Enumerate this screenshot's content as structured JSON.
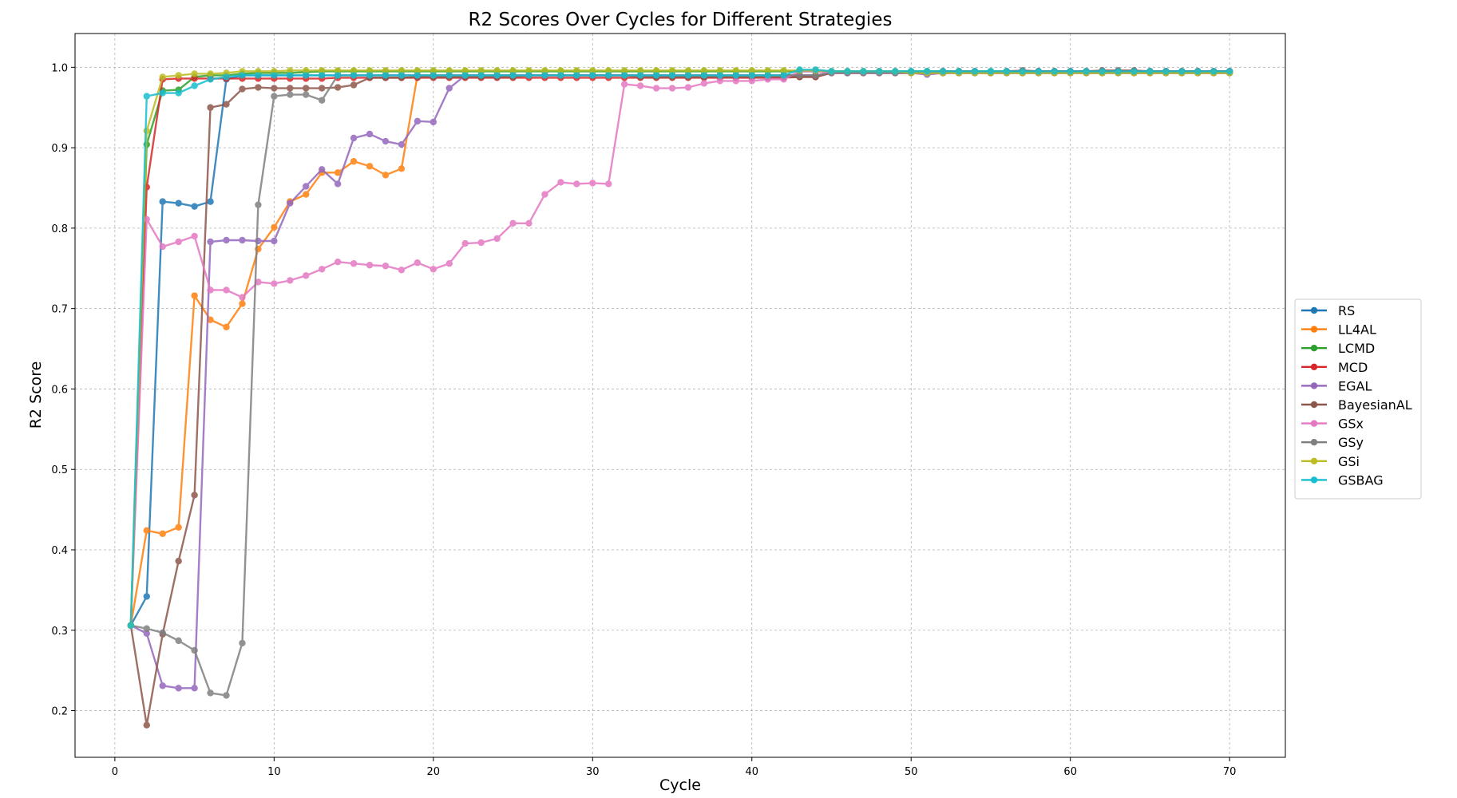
{
  "chart_data": {
    "type": "line",
    "title": "R2 Scores Over Cycles for Different Strategies",
    "xlabel": "Cycle",
    "ylabel": "R2 Score",
    "xlim": [
      -2.5,
      73.5
    ],
    "ylim": [
      0.142,
      1.042
    ],
    "xticks": [
      0,
      10,
      20,
      30,
      40,
      50,
      60,
      70
    ],
    "yticks": [
      0.2,
      0.3,
      0.4,
      0.5,
      0.6,
      0.7,
      0.8,
      0.9,
      1.0
    ],
    "grid": true,
    "legend_position": "center-right, outside plot",
    "x_start": 1,
    "series": [
      {
        "name": "RS",
        "color": "#1f77b4",
        "values": [
          0.306,
          0.342,
          0.833,
          0.831,
          0.827,
          0.833,
          0.985,
          0.99,
          0.99,
          0.99,
          0.99,
          0.99,
          0.99,
          0.99,
          0.99,
          0.99,
          0.99,
          0.99,
          0.99,
          0.99,
          0.99,
          0.99,
          0.99,
          0.99,
          0.99,
          0.99,
          0.99,
          0.99,
          0.99,
          0.99,
          0.99,
          0.99,
          0.99,
          0.99,
          0.99,
          0.99,
          0.99,
          0.99,
          0.99,
          0.99,
          0.99,
          0.99,
          0.99,
          0.99,
          0.993,
          0.993,
          0.993,
          0.993,
          0.993,
          0.993,
          0.993,
          0.993,
          0.993,
          0.993,
          0.993,
          0.993,
          0.993,
          0.993,
          0.993,
          0.993,
          0.993,
          0.993,
          0.993,
          0.993,
          0.993,
          0.993,
          0.993,
          0.993,
          0.993,
          0.993
        ]
      },
      {
        "name": "LL4AL",
        "color": "#ff7f0e",
        "values": [
          0.306,
          0.424,
          0.42,
          0.428,
          0.716,
          0.686,
          0.677,
          0.706,
          0.774,
          0.801,
          0.833,
          0.842,
          0.869,
          0.869,
          0.883,
          0.877,
          0.866,
          0.874,
          0.99,
          0.99,
          0.99,
          0.99,
          0.99,
          0.99,
          0.99,
          0.99,
          0.99,
          0.99,
          0.99,
          0.99,
          0.99,
          0.99,
          0.99,
          0.99,
          0.99,
          0.99,
          0.99,
          0.99,
          0.99,
          0.99,
          0.99,
          0.99,
          0.99,
          0.99,
          0.993,
          0.993,
          0.993,
          0.993,
          0.993,
          0.993,
          0.993,
          0.993,
          0.993,
          0.993,
          0.993,
          0.993,
          0.993,
          0.993,
          0.993,
          0.993,
          0.993,
          0.993,
          0.993,
          0.993,
          0.993,
          0.993,
          0.993,
          0.993,
          0.993,
          0.993
        ]
      },
      {
        "name": "LCMD",
        "color": "#2ca02c",
        "values": [
          0.306,
          0.904,
          0.971,
          0.972,
          0.988,
          0.99,
          0.99,
          0.992,
          0.993,
          0.993,
          0.993,
          0.994,
          0.995,
          0.995,
          0.995,
          0.995,
          0.995,
          0.995,
          0.995,
          0.995,
          0.995,
          0.995,
          0.995,
          0.995,
          0.995,
          0.995,
          0.995,
          0.995,
          0.995,
          0.995,
          0.995,
          0.995,
          0.995,
          0.995,
          0.995,
          0.995,
          0.995,
          0.995,
          0.995,
          0.995,
          0.995,
          0.995,
          0.995,
          0.995,
          0.995,
          0.995,
          0.995,
          0.995,
          0.995,
          0.995,
          0.995,
          0.995,
          0.995,
          0.995,
          0.995,
          0.995,
          0.995,
          0.995,
          0.995,
          0.995,
          0.995,
          0.995,
          0.995,
          0.995,
          0.995,
          0.995,
          0.995,
          0.995,
          0.995,
          0.995
        ]
      },
      {
        "name": "MCD",
        "color": "#d62728",
        "values": [
          0.306,
          0.851,
          0.985,
          0.986,
          0.986,
          0.986,
          0.986,
          0.986,
          0.986,
          0.986,
          0.986,
          0.986,
          0.986,
          0.987,
          0.987,
          0.987,
          0.987,
          0.987,
          0.987,
          0.987,
          0.987,
          0.987,
          0.987,
          0.987,
          0.987,
          0.987,
          0.987,
          0.987,
          0.987,
          0.987,
          0.987,
          0.987,
          0.987,
          0.987,
          0.987,
          0.987,
          0.987,
          0.987,
          0.987,
          0.987,
          0.987,
          0.987,
          0.988,
          0.988,
          0.993,
          0.993,
          0.993,
          0.993,
          0.993,
          0.993,
          0.993,
          0.993,
          0.993,
          0.993,
          0.993,
          0.993,
          0.995,
          0.995,
          0.995,
          0.995,
          0.995,
          0.995,
          0.995,
          0.995,
          0.995,
          0.995,
          0.995,
          0.995,
          0.995,
          0.995
        ]
      },
      {
        "name": "EGAL",
        "color": "#9467bd",
        "values": [
          0.306,
          0.296,
          0.231,
          0.228,
          0.228,
          0.783,
          0.785,
          0.785,
          0.784,
          0.784,
          0.831,
          0.852,
          0.873,
          0.855,
          0.912,
          0.917,
          0.908,
          0.904,
          0.933,
          0.932,
          0.974,
          0.99,
          0.99,
          0.99,
          0.99,
          0.99,
          0.99,
          0.99,
          0.99,
          0.99,
          0.99,
          0.99,
          0.99,
          0.99,
          0.99,
          0.99,
          0.99,
          0.99,
          0.99,
          0.99,
          0.99,
          0.99,
          0.99,
          0.99,
          0.993,
          0.993,
          0.993,
          0.993,
          0.993,
          0.993,
          0.991,
          0.993,
          0.993,
          0.993,
          0.993,
          0.993,
          0.993,
          0.993,
          0.993,
          0.993,
          0.993,
          0.993,
          0.993,
          0.993,
          0.993,
          0.993,
          0.993,
          0.993,
          0.993,
          0.993
        ]
      },
      {
        "name": "BayesianAL",
        "color": "#8c564b",
        "values": [
          0.306,
          0.182,
          0.295,
          0.386,
          0.468,
          0.95,
          0.954,
          0.973,
          0.975,
          0.974,
          0.974,
          0.974,
          0.974,
          0.975,
          0.978,
          0.987,
          0.987,
          0.987,
          0.988,
          0.988,
          0.988,
          0.988,
          0.988,
          0.988,
          0.988,
          0.99,
          0.99,
          0.99,
          0.99,
          0.99,
          0.99,
          0.99,
          0.988,
          0.988,
          0.988,
          0.988,
          0.988,
          0.988,
          0.988,
          0.988,
          0.988,
          0.988,
          0.988,
          0.988,
          0.993,
          0.993,
          0.993,
          0.995,
          0.993,
          0.993,
          0.993,
          0.995,
          0.995,
          0.995,
          0.993,
          0.995,
          0.996,
          0.995,
          0.995,
          0.995,
          0.995,
          0.996,
          0.996,
          0.996,
          0.995,
          0.995,
          0.995,
          0.995,
          0.995,
          0.995
        ]
      },
      {
        "name": "GSx",
        "color": "#e377c2",
        "values": [
          0.306,
          0.811,
          0.777,
          0.783,
          0.79,
          0.723,
          0.723,
          0.714,
          0.733,
          0.731,
          0.735,
          0.741,
          0.749,
          0.758,
          0.756,
          0.754,
          0.753,
          0.748,
          0.757,
          0.749,
          0.756,
          0.781,
          0.782,
          0.787,
          0.806,
          0.806,
          0.842,
          0.857,
          0.855,
          0.856,
          0.855,
          0.979,
          0.977,
          0.974,
          0.974,
          0.975,
          0.98,
          0.983,
          0.983,
          0.983,
          0.985,
          0.985,
          0.995,
          0.995,
          0.993,
          0.993,
          0.993,
          0.993,
          0.993,
          0.993,
          0.993,
          0.993,
          0.993,
          0.993,
          0.993,
          0.993,
          0.993,
          0.993,
          0.993,
          0.993,
          0.993,
          0.993,
          0.993,
          0.993,
          0.993,
          0.993,
          0.993,
          0.993,
          0.993,
          0.993
        ]
      },
      {
        "name": "GSy",
        "color": "#7f7f7f",
        "values": [
          0.306,
          0.302,
          0.297,
          0.287,
          0.275,
          0.222,
          0.219,
          0.284,
          0.829,
          0.964,
          0.966,
          0.966,
          0.959,
          0.99,
          0.99,
          0.99,
          0.99,
          0.99,
          0.99,
          0.99,
          0.99,
          0.99,
          0.99,
          0.99,
          0.99,
          0.99,
          0.99,
          0.99,
          0.99,
          0.99,
          0.99,
          0.99,
          0.99,
          0.99,
          0.99,
          0.99,
          0.99,
          0.99,
          0.99,
          0.99,
          0.99,
          0.99,
          0.99,
          0.99,
          0.993,
          0.993,
          0.993,
          0.993,
          0.993,
          0.993,
          0.993,
          0.993,
          0.993,
          0.993,
          0.993,
          0.993,
          0.993,
          0.993,
          0.993,
          0.993,
          0.993,
          0.993,
          0.993,
          0.993,
          0.993,
          0.993,
          0.993,
          0.993,
          0.993,
          0.993
        ]
      },
      {
        "name": "GSi",
        "color": "#bcbd22",
        "values": [
          0.306,
          0.921,
          0.988,
          0.99,
          0.992,
          0.992,
          0.993,
          0.995,
          0.995,
          0.995,
          0.996,
          0.996,
          0.996,
          0.996,
          0.996,
          0.996,
          0.996,
          0.996,
          0.996,
          0.996,
          0.996,
          0.996,
          0.996,
          0.996,
          0.996,
          0.996,
          0.996,
          0.996,
          0.996,
          0.996,
          0.996,
          0.996,
          0.996,
          0.996,
          0.996,
          0.996,
          0.996,
          0.996,
          0.996,
          0.996,
          0.996,
          0.996,
          0.996,
          0.996,
          0.995,
          0.995,
          0.995,
          0.995,
          0.995,
          0.993,
          0.993,
          0.993,
          0.993,
          0.993,
          0.993,
          0.993,
          0.993,
          0.993,
          0.993,
          0.993,
          0.993,
          0.993,
          0.993,
          0.993,
          0.993,
          0.993,
          0.993,
          0.993,
          0.993,
          0.993
        ]
      },
      {
        "name": "GSBAG",
        "color": "#17becf",
        "values": [
          0.306,
          0.964,
          0.968,
          0.968,
          0.977,
          0.985,
          0.988,
          0.99,
          0.99,
          0.99,
          0.99,
          0.99,
          0.99,
          0.99,
          0.99,
          0.99,
          0.99,
          0.99,
          0.99,
          0.99,
          0.99,
          0.99,
          0.99,
          0.99,
          0.99,
          0.99,
          0.99,
          0.99,
          0.99,
          0.99,
          0.99,
          0.99,
          0.99,
          0.99,
          0.99,
          0.99,
          0.99,
          0.99,
          0.99,
          0.99,
          0.99,
          0.99,
          0.997,
          0.997,
          0.995,
          0.995,
          0.995,
          0.995,
          0.995,
          0.995,
          0.995,
          0.995,
          0.995,
          0.995,
          0.995,
          0.995,
          0.995,
          0.995,
          0.995,
          0.995,
          0.995,
          0.995,
          0.995,
          0.995,
          0.995,
          0.995,
          0.995,
          0.995,
          0.995,
          0.995
        ]
      }
    ]
  }
}
